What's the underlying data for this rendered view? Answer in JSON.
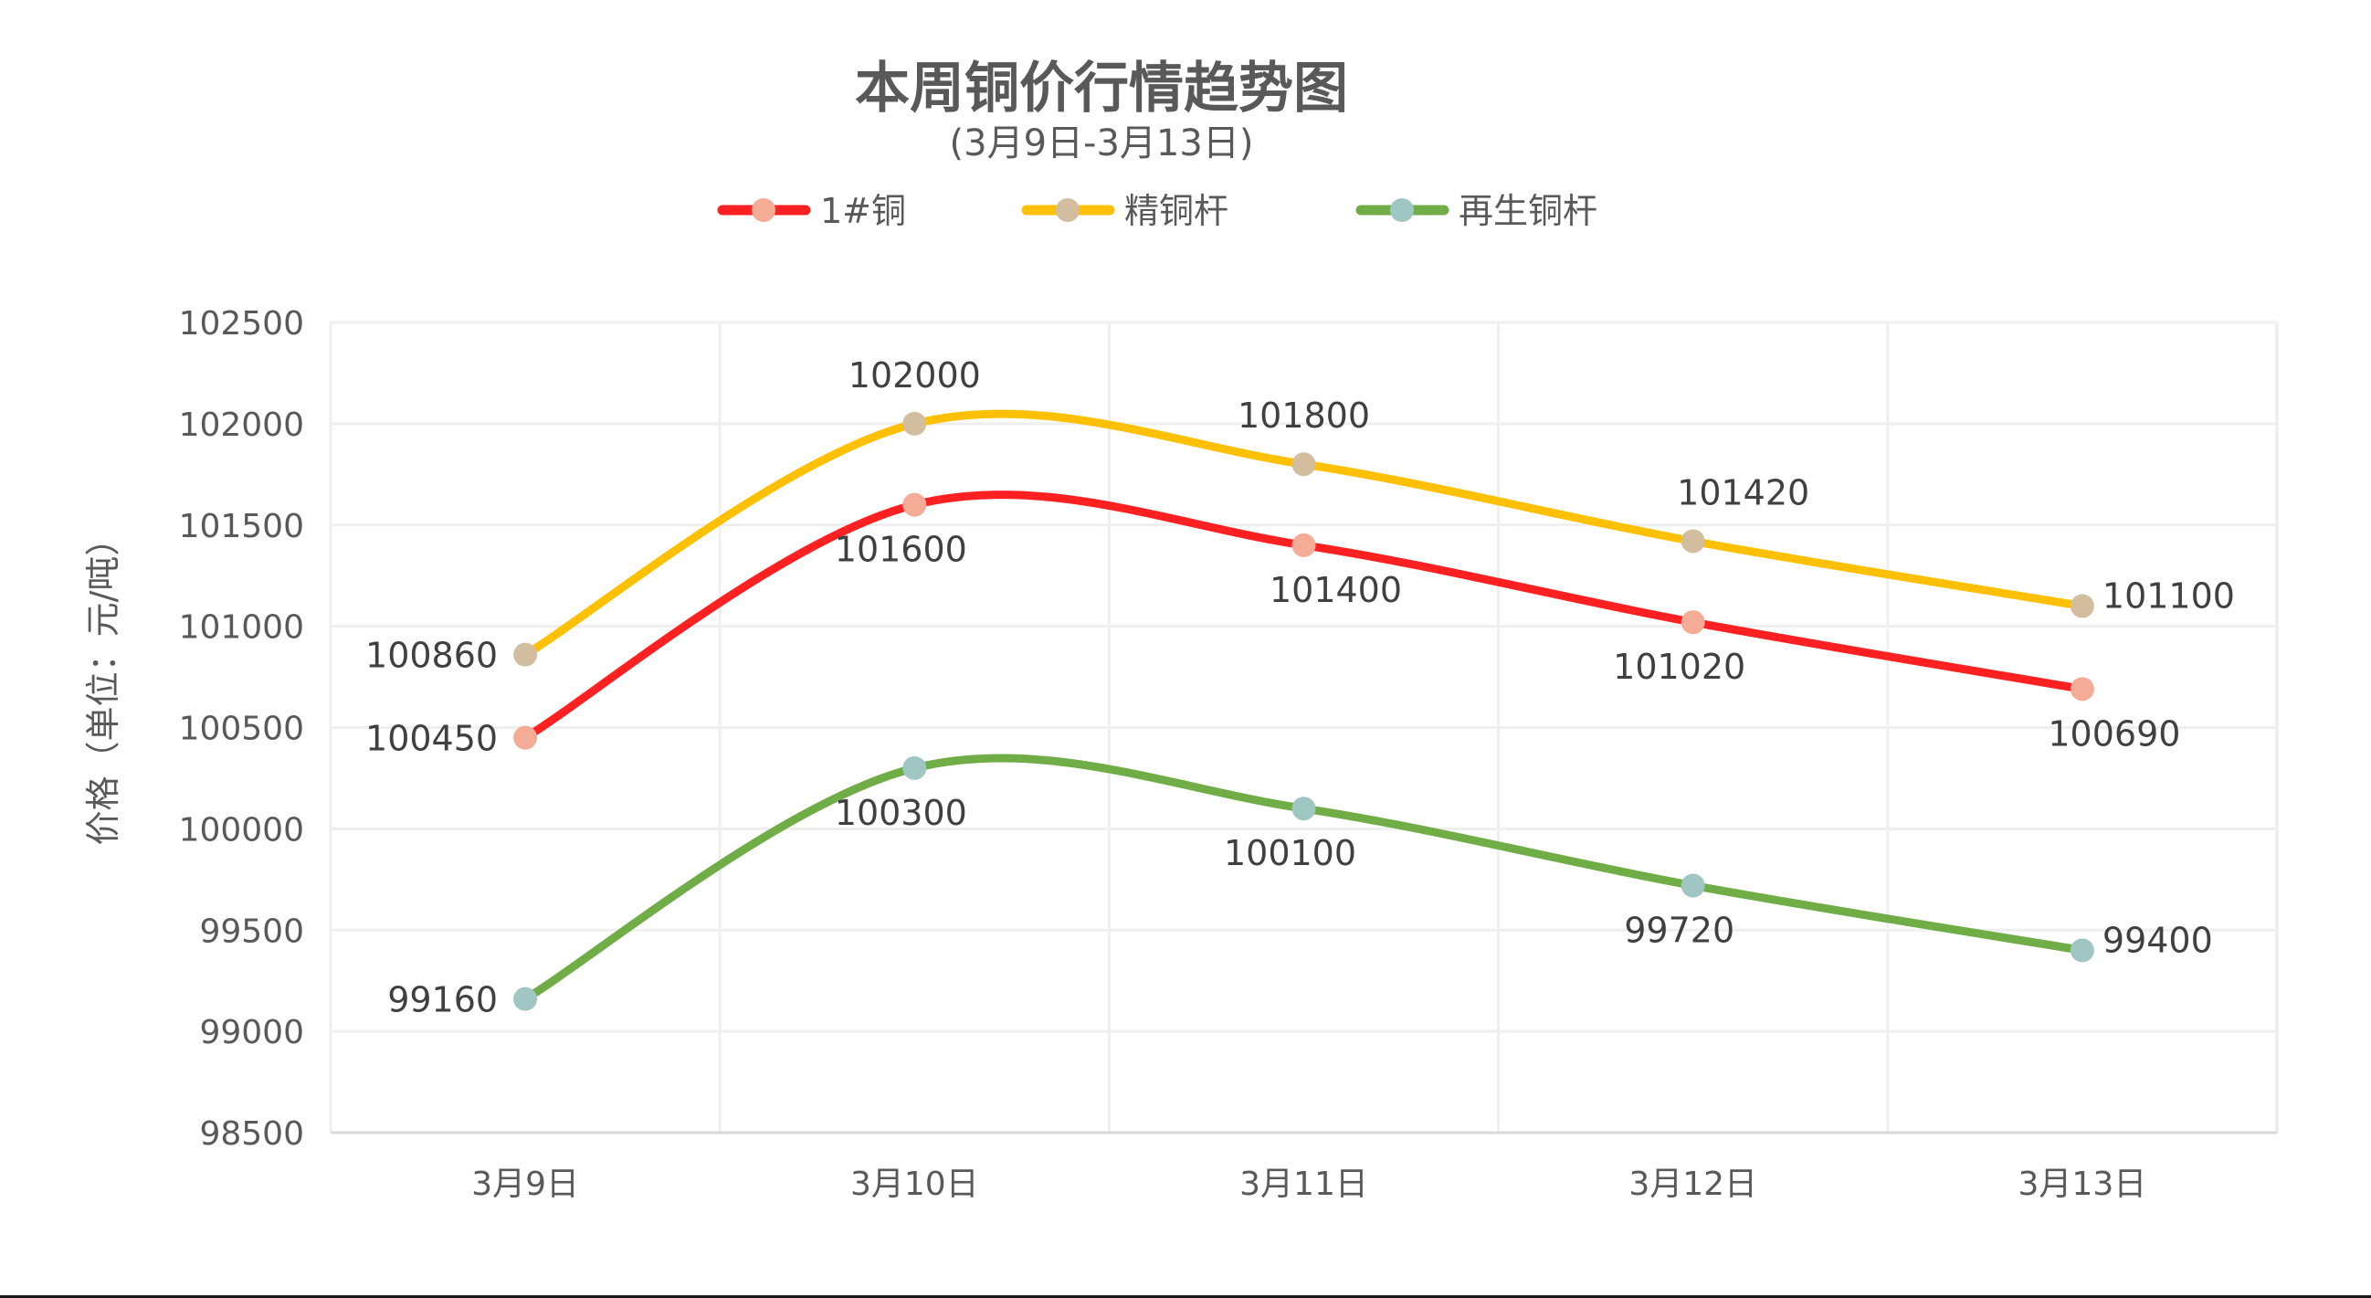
{
  "chart_data": {
    "type": "line",
    "title": "本周铜价行情趋势图",
    "subtitle": "(3月9日-3月13日)",
    "xlabel": "",
    "ylabel": "价格（单位：元/吨）",
    "categories": [
      "3月9日",
      "3月10日",
      "3月11日",
      "3月12日",
      "3月13日"
    ],
    "ylim": [
      98500,
      102500
    ],
    "yticks": [
      98500,
      99000,
      99500,
      100000,
      100500,
      101000,
      101500,
      102000,
      102500
    ],
    "grid": {
      "horizontal": true,
      "vertical": true
    },
    "legend_position": "top",
    "smooth": true,
    "series": [
      {
        "name": "1#铜",
        "values": [
          100450,
          101600,
          101400,
          101020,
          100690
        ],
        "line_color": "#FF2121",
        "marker_color": "#F4AC96",
        "label_pos": [
          "left",
          "below",
          "below-right",
          "below",
          "below-right"
        ]
      },
      {
        "name": "精铜杆",
        "values": [
          100860,
          102000,
          101800,
          101420,
          101100
        ],
        "line_color": "#FFC000",
        "marker_color": "#D2BD9F",
        "label_pos": [
          "left",
          "above",
          "above",
          "above-right",
          "right"
        ]
      },
      {
        "name": "再生铜杆",
        "values": [
          99160,
          100300,
          100100,
          99720,
          99400
        ],
        "line_color": "#70AD47",
        "marker_color": "#9FC6C2",
        "label_pos": [
          "left",
          "below",
          "below",
          "below",
          "right"
        ]
      }
    ]
  }
}
